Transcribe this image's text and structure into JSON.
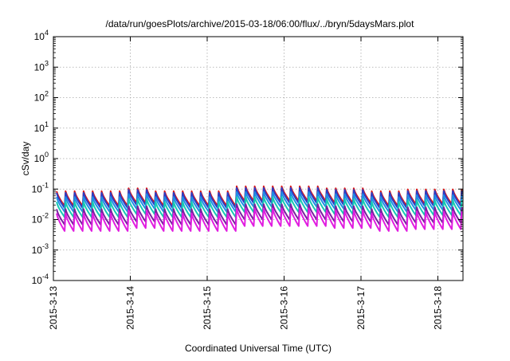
{
  "chart_data": {
    "type": "line",
    "title": "/data/run/goesPlots/archive/2015-03-18/06:00/flux/../bryn/5daysMars.plot",
    "xlabel": "Coordinated Universal Time (UTC)",
    "ylabel": "cSv/day",
    "x_ticks": [
      "2015-3-13",
      "2015-3-14",
      "2015-3-15",
      "2015-3-16",
      "2015-3-17",
      "2015-3-18"
    ],
    "xlim": [
      "2015-3-13 00:00",
      "2015-3-18 06:00"
    ],
    "y_scale": "log",
    "ylim": [
      0.0001,
      10000
    ],
    "y_ticks": [
      {
        "base": "10",
        "exp": "-4"
      },
      {
        "base": "10",
        "exp": "-3"
      },
      {
        "base": "10",
        "exp": "-2"
      },
      {
        "base": "10",
        "exp": "-1"
      },
      {
        "base": "10",
        "exp": "0"
      },
      {
        "base": "10",
        "exp": "1"
      },
      {
        "base": "10",
        "exp": "2"
      },
      {
        "base": "10",
        "exp": "3"
      },
      {
        "base": "10",
        "exp": "4"
      }
    ],
    "grid": true,
    "series": [
      {
        "color": "#d7191c",
        "peak": 0.085,
        "trough": 0.028
      },
      {
        "color": "#2b3ec6",
        "peak": 0.075,
        "trough": 0.024
      },
      {
        "color": "#1f8fe6",
        "peak": 0.055,
        "trough": 0.018
      },
      {
        "color": "#17c9b2",
        "peak": 0.038,
        "trough": 0.012
      },
      {
        "color": "#7a1fa0",
        "peak": 0.022,
        "trough": 0.0068
      },
      {
        "color": "#e11ee0",
        "peak": 0.016,
        "trough": 0.0042
      }
    ]
  }
}
